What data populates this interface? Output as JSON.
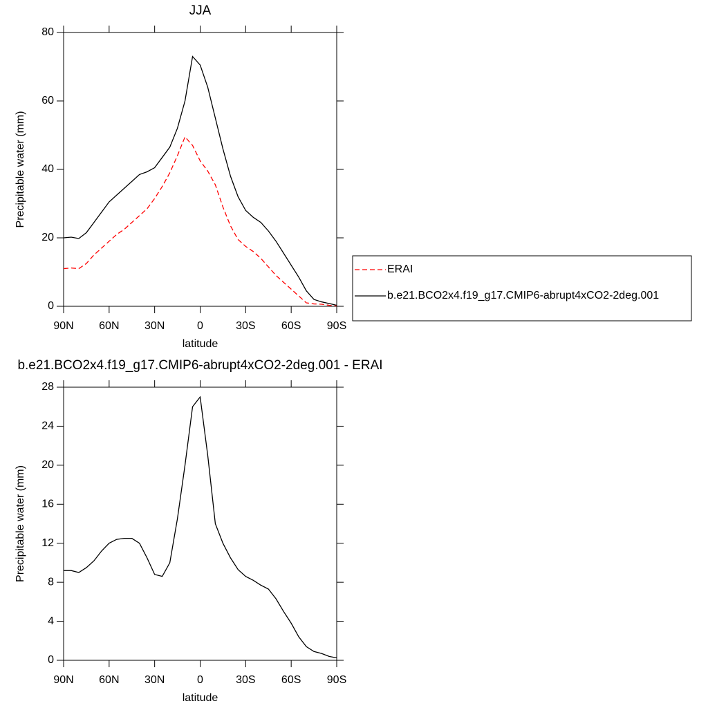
{
  "chart_data": [
    {
      "type": "line",
      "title": "JJA",
      "xlabel": "latitude",
      "ylabel": "Precipitable water (mm)",
      "x": [
        90,
        85,
        80,
        75,
        70,
        65,
        60,
        55,
        50,
        45,
        40,
        35,
        30,
        25,
        20,
        15,
        10,
        5,
        0,
        -5,
        -10,
        -15,
        -20,
        -25,
        -30,
        -35,
        -40,
        -45,
        -50,
        -55,
        -60,
        -65,
        -70,
        -75,
        -80,
        -85,
        -90
      ],
      "xlim": [
        90,
        -90
      ],
      "xticks": [
        {
          "value": 90,
          "label": "90N"
        },
        {
          "value": 60,
          "label": "60N"
        },
        {
          "value": 30,
          "label": "30N"
        },
        0,
        {
          "value": -30,
          "label": "30S"
        },
        {
          "value": -60,
          "label": "60S"
        },
        {
          "value": -90,
          "label": "90S"
        }
      ],
      "ylim": [
        0,
        80
      ],
      "yticks": [
        0,
        20,
        40,
        60,
        80
      ],
      "legend": "right",
      "series": [
        {
          "name": "ERAI",
          "color": "#ff0000",
          "line_style": "dashed",
          "values": [
            11,
            11.2,
            11,
            12.5,
            15,
            17,
            19,
            21,
            22.5,
            24.5,
            26.5,
            28.5,
            31.5,
            35,
            39,
            44,
            49.5,
            47,
            42.5,
            39.5,
            35.5,
            29,
            23.5,
            19.5,
            17.5,
            16,
            14,
            11.5,
            9,
            7,
            5,
            3,
            1,
            0.7,
            0.6,
            0.3,
            0.1
          ]
        },
        {
          "name": "b.e21.BCO2x4.f19_g17.CMIP6-abrupt4xCO2-2deg.001",
          "color": "#000000",
          "line_style": "solid",
          "values": [
            20,
            20.2,
            19.8,
            21.5,
            24.5,
            27.5,
            30.5,
            32.5,
            34.5,
            36.5,
            38.5,
            39.3,
            40.5,
            43.5,
            46.5,
            52,
            60,
            73,
            70.5,
            64,
            55,
            46,
            38,
            32,
            28,
            26,
            24.5,
            22,
            19,
            15.5,
            12,
            8.5,
            4.5,
            2,
            1.3,
            0.8,
            0.3
          ]
        }
      ]
    },
    {
      "type": "line",
      "title": "b.e21.BCO2x4.f19_g17.CMIP6-abrupt4xCO2-2deg.001 - ERAI",
      "xlabel": "latitude",
      "ylabel": "Precipitable water (mm)",
      "x": [
        90,
        85,
        80,
        75,
        70,
        65,
        60,
        55,
        50,
        45,
        40,
        35,
        30,
        25,
        20,
        15,
        10,
        5,
        0,
        -5,
        -10,
        -15,
        -20,
        -25,
        -30,
        -35,
        -40,
        -45,
        -50,
        -55,
        -60,
        -65,
        -70,
        -75,
        -80,
        -85,
        -90
      ],
      "xlim": [
        90,
        -90
      ],
      "xticks": [
        {
          "value": 90,
          "label": "90N"
        },
        {
          "value": 60,
          "label": "60N"
        },
        {
          "value": 30,
          "label": "30N"
        },
        0,
        {
          "value": -30,
          "label": "30S"
        },
        {
          "value": -60,
          "label": "60S"
        },
        {
          "value": -90,
          "label": "90S"
        }
      ],
      "ylim": [
        0,
        28
      ],
      "yticks": [
        0,
        4,
        8,
        12,
        16,
        20,
        24,
        28
      ],
      "series": [
        {
          "color": "#000000",
          "line_style": "solid",
          "values": [
            9.2,
            9.2,
            9,
            9.5,
            10.2,
            11.2,
            12,
            12.4,
            12.5,
            12.5,
            12,
            10.5,
            8.8,
            8.6,
            10,
            14.5,
            20,
            26,
            27,
            21,
            14,
            12,
            10.5,
            9.3,
            8.6,
            8.2,
            7.7,
            7.3,
            6.3,
            5,
            3.8,
            2.4,
            1.4,
            0.9,
            0.7,
            0.4,
            0.25
          ]
        }
      ]
    }
  ]
}
